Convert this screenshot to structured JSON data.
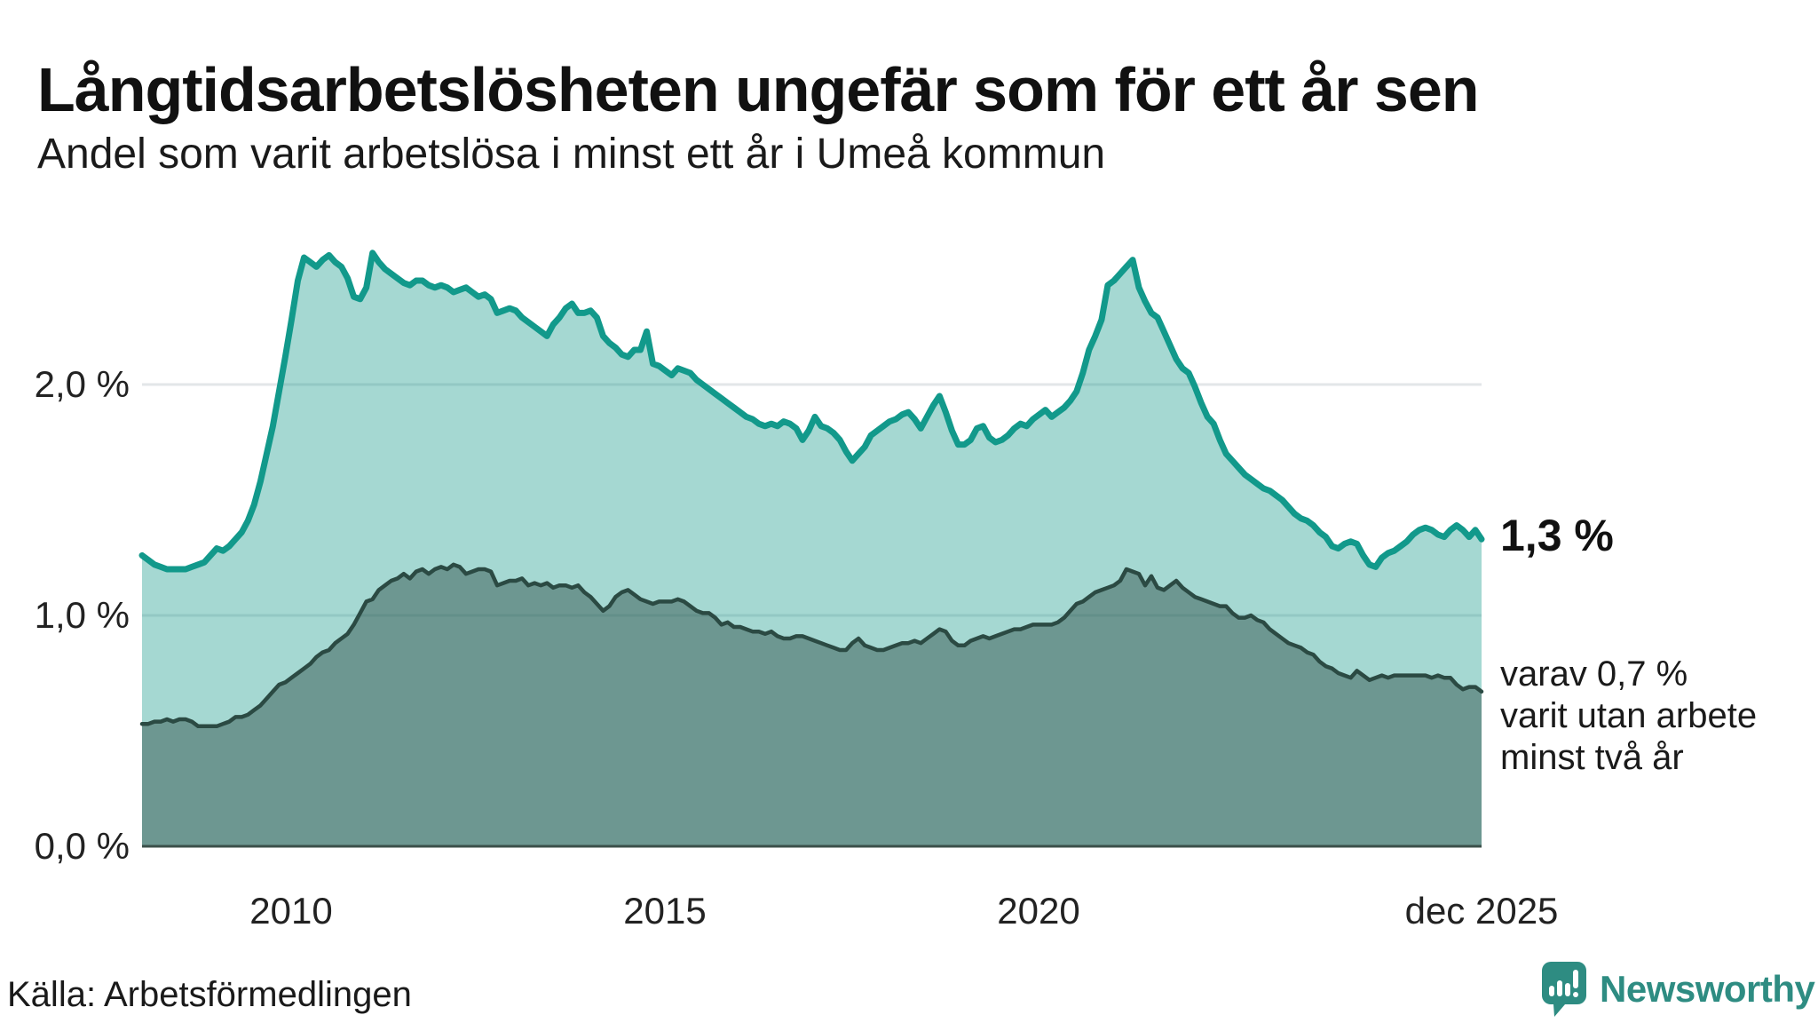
{
  "header": {
    "title": "Långtidsarbetslösheten ungefär som för ett år sen",
    "subtitle": "Andel som varit arbetslösa i minst ett år i Umeå kommun"
  },
  "chart_data": {
    "type": "area",
    "unit": "%",
    "grid": "horizontal",
    "x_start_year": 2008,
    "x_end_label": "dec 2025",
    "frequency": "monthly",
    "ylim": [
      0,
      2.75
    ],
    "y_ticks": [
      {
        "label": "0,0 %",
        "value": 0
      },
      {
        "label": "1,0 %",
        "value": 1
      },
      {
        "label": "2,0 %",
        "value": 2
      }
    ],
    "x_ticks": [
      {
        "label": "2010",
        "year": 2010
      },
      {
        "label": "2015",
        "year": 2015
      },
      {
        "label": "2020",
        "year": 2020
      },
      {
        "label": "dec 2025",
        "year": 2025.92
      }
    ],
    "series": [
      {
        "name": "Andel som varit arbetslösa minst ett år",
        "color": "#12998b",
        "fill": "rgba(18,153,137,0.38)",
        "end_value_label": "1,3 %",
        "values": [
          1.26,
          1.24,
          1.22,
          1.21,
          1.2,
          1.2,
          1.2,
          1.2,
          1.21,
          1.22,
          1.23,
          1.26,
          1.29,
          1.28,
          1.3,
          1.33,
          1.36,
          1.41,
          1.48,
          1.58,
          1.7,
          1.82,
          1.97,
          2.12,
          2.28,
          2.45,
          2.55,
          2.53,
          2.51,
          2.54,
          2.56,
          2.53,
          2.51,
          2.46,
          2.38,
          2.37,
          2.42,
          2.57,
          2.53,
          2.5,
          2.48,
          2.46,
          2.44,
          2.43,
          2.45,
          2.45,
          2.43,
          2.42,
          2.43,
          2.42,
          2.4,
          2.41,
          2.42,
          2.4,
          2.38,
          2.39,
          2.37,
          2.31,
          2.32,
          2.33,
          2.32,
          2.29,
          2.27,
          2.25,
          2.23,
          2.21,
          2.26,
          2.29,
          2.33,
          2.35,
          2.31,
          2.31,
          2.32,
          2.29,
          2.21,
          2.18,
          2.16,
          2.13,
          2.12,
          2.15,
          2.15,
          2.23,
          2.09,
          2.08,
          2.06,
          2.04,
          2.07,
          2.06,
          2.05,
          2.02,
          2.0,
          1.98,
          1.96,
          1.94,
          1.92,
          1.9,
          1.88,
          1.86,
          1.85,
          1.83,
          1.82,
          1.83,
          1.82,
          1.84,
          1.83,
          1.81,
          1.76,
          1.8,
          1.86,
          1.82,
          1.81,
          1.79,
          1.76,
          1.71,
          1.67,
          1.7,
          1.73,
          1.78,
          1.8,
          1.82,
          1.84,
          1.85,
          1.87,
          1.88,
          1.85,
          1.81,
          1.86,
          1.91,
          1.95,
          1.88,
          1.8,
          1.74,
          1.74,
          1.76,
          1.81,
          1.82,
          1.77,
          1.75,
          1.76,
          1.78,
          1.81,
          1.83,
          1.82,
          1.85,
          1.87,
          1.89,
          1.86,
          1.88,
          1.9,
          1.93,
          1.97,
          2.05,
          2.15,
          2.21,
          2.28,
          2.43,
          2.45,
          2.48,
          2.51,
          2.54,
          2.42,
          2.36,
          2.31,
          2.29,
          2.23,
          2.17,
          2.11,
          2.07,
          2.05,
          1.99,
          1.92,
          1.86,
          1.83,
          1.76,
          1.7,
          1.67,
          1.64,
          1.61,
          1.59,
          1.57,
          1.55,
          1.54,
          1.52,
          1.5,
          1.47,
          1.44,
          1.42,
          1.41,
          1.39,
          1.36,
          1.34,
          1.3,
          1.29,
          1.31,
          1.32,
          1.31,
          1.26,
          1.22,
          1.21,
          1.25,
          1.27,
          1.28,
          1.3,
          1.32,
          1.35,
          1.37,
          1.38,
          1.37,
          1.35,
          1.34,
          1.37,
          1.39,
          1.37,
          1.34,
          1.37,
          1.33
        ]
      },
      {
        "name": "varav arbetslösa minst två år",
        "color": "#2b4a43",
        "fill": "rgba(43,74,67,0.45)",
        "end_value_label": "0,7 %",
        "values": [
          0.53,
          0.53,
          0.54,
          0.54,
          0.55,
          0.54,
          0.55,
          0.55,
          0.54,
          0.52,
          0.52,
          0.52,
          0.52,
          0.53,
          0.54,
          0.56,
          0.56,
          0.57,
          0.59,
          0.61,
          0.64,
          0.67,
          0.7,
          0.71,
          0.73,
          0.75,
          0.77,
          0.79,
          0.82,
          0.84,
          0.85,
          0.88,
          0.9,
          0.92,
          0.96,
          1.01,
          1.06,
          1.07,
          1.11,
          1.13,
          1.15,
          1.16,
          1.18,
          1.16,
          1.19,
          1.2,
          1.18,
          1.2,
          1.21,
          1.2,
          1.22,
          1.21,
          1.18,
          1.19,
          1.2,
          1.2,
          1.19,
          1.13,
          1.14,
          1.15,
          1.15,
          1.16,
          1.13,
          1.14,
          1.13,
          1.14,
          1.12,
          1.13,
          1.13,
          1.12,
          1.13,
          1.1,
          1.08,
          1.05,
          1.02,
          1.04,
          1.08,
          1.1,
          1.11,
          1.09,
          1.07,
          1.06,
          1.05,
          1.06,
          1.06,
          1.06,
          1.07,
          1.06,
          1.04,
          1.02,
          1.01,
          1.01,
          0.99,
          0.96,
          0.97,
          0.95,
          0.95,
          0.94,
          0.93,
          0.93,
          0.92,
          0.93,
          0.91,
          0.9,
          0.9,
          0.91,
          0.91,
          0.9,
          0.89,
          0.88,
          0.87,
          0.86,
          0.85,
          0.85,
          0.88,
          0.9,
          0.87,
          0.86,
          0.85,
          0.85,
          0.86,
          0.87,
          0.88,
          0.88,
          0.89,
          0.88,
          0.9,
          0.92,
          0.94,
          0.93,
          0.89,
          0.87,
          0.87,
          0.89,
          0.9,
          0.91,
          0.9,
          0.91,
          0.92,
          0.93,
          0.94,
          0.94,
          0.95,
          0.96,
          0.96,
          0.96,
          0.96,
          0.97,
          0.99,
          1.02,
          1.05,
          1.06,
          1.08,
          1.1,
          1.11,
          1.12,
          1.13,
          1.15,
          1.2,
          1.19,
          1.18,
          1.13,
          1.17,
          1.12,
          1.11,
          1.13,
          1.15,
          1.12,
          1.1,
          1.08,
          1.07,
          1.06,
          1.05,
          1.04,
          1.04,
          1.01,
          0.99,
          0.99,
          1.0,
          0.98,
          0.97,
          0.94,
          0.92,
          0.9,
          0.88,
          0.87,
          0.86,
          0.84,
          0.83,
          0.8,
          0.78,
          0.77,
          0.75,
          0.74,
          0.73,
          0.76,
          0.74,
          0.72,
          0.73,
          0.74,
          0.73,
          0.74,
          0.74,
          0.74,
          0.74,
          0.74,
          0.74,
          0.73,
          0.74,
          0.73,
          0.73,
          0.7,
          0.68,
          0.69,
          0.69,
          0.67
        ]
      }
    ]
  },
  "annotations": {
    "total_value": "1,3 %",
    "two_year_lines": [
      "varav 0,7 %",
      "varit utan arbete",
      "minst två år"
    ]
  },
  "footer": {
    "source": "Källa: Arbetsförmedlingen",
    "brand": "Newsworthy"
  }
}
